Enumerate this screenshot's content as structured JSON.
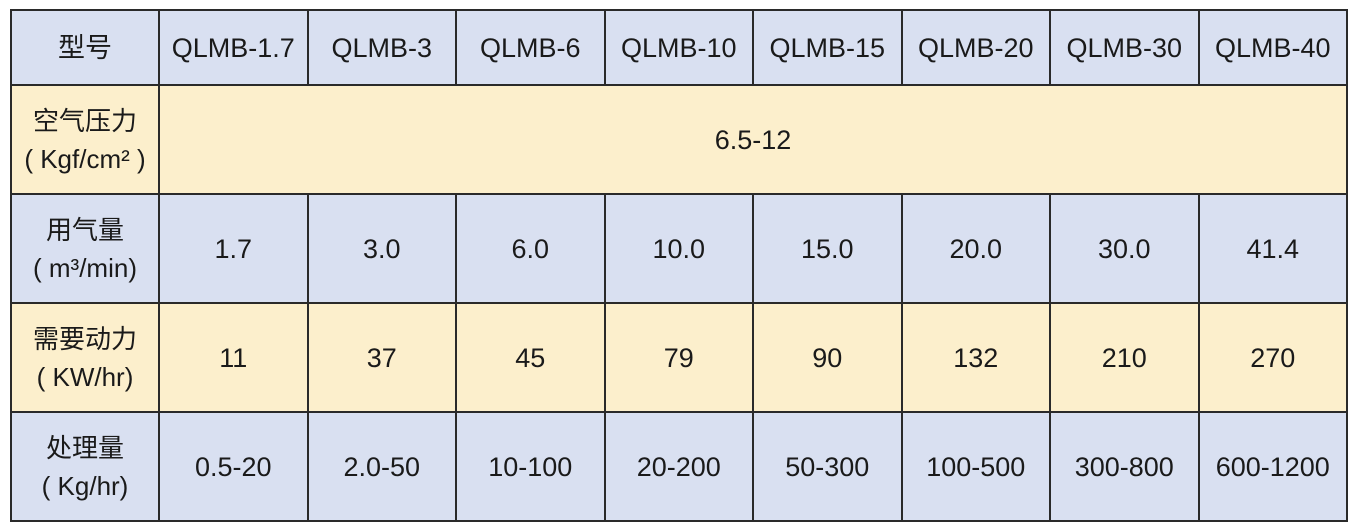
{
  "colors": {
    "blue_row": "#d9e0f1",
    "yellow_row": "#fcefcc"
  },
  "header": {
    "label": "型号",
    "models": [
      "QLMB-1.7",
      "QLMB-3",
      "QLMB-6",
      "QLMB-10",
      "QLMB-15",
      "QLMB-20",
      "QLMB-30",
      "QLMB-40"
    ]
  },
  "rows": [
    {
      "label": "空气压力",
      "unit": "( Kgf/cm² )",
      "merged_value": "6.5-12"
    },
    {
      "label": "用气量",
      "unit": "( m³/min)",
      "values": [
        "1.7",
        "3.0",
        "6.0",
        "10.0",
        "15.0",
        "20.0",
        "30.0",
        "41.4"
      ]
    },
    {
      "label": "需要动力",
      "unit": "( KW/hr)",
      "values": [
        "11",
        "37",
        "45",
        "79",
        "90",
        "132",
        "210",
        "270"
      ]
    },
    {
      "label": "处理量",
      "unit": "( Kg/hr)",
      "values": [
        "0.5-20",
        "2.0-50",
        "10-100",
        "20-200",
        "50-300",
        "100-500",
        "300-800",
        "600-1200"
      ]
    }
  ]
}
